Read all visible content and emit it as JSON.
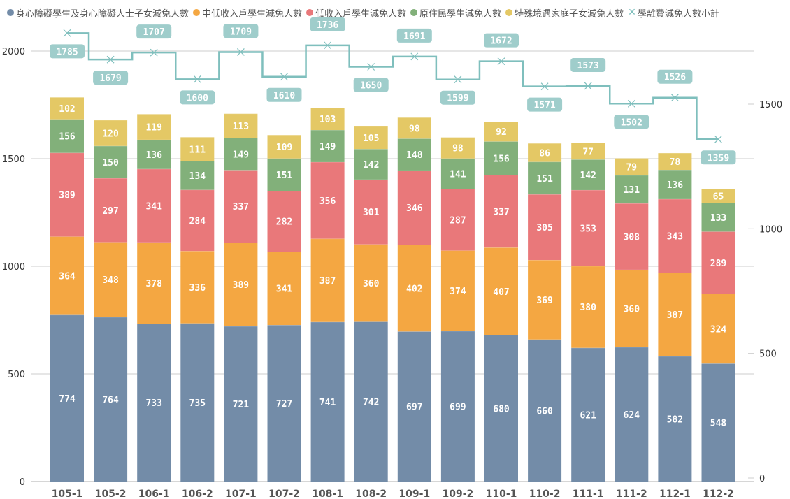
{
  "chart_data": {
    "type": "bar",
    "stacked": true,
    "title": "",
    "xlabel": "",
    "ylabel": "",
    "categories": [
      "105-1",
      "105-2",
      "106-1",
      "106-2",
      "107-1",
      "107-2",
      "108-1",
      "108-2",
      "109-1",
      "109-2",
      "110-1",
      "110-2",
      "111-1",
      "111-2",
      "112-1",
      "112-2"
    ],
    "series": [
      {
        "name": "身心障礙學生及身心障礙人士子女減免人數",
        "color": "#738ca8",
        "axis": "left",
        "values": [
          774,
          764,
          733,
          735,
          721,
          727,
          741,
          742,
          697,
          699,
          680,
          660,
          621,
          624,
          582,
          548
        ]
      },
      {
        "name": "中低收入戶學生減免人數",
        "color": "#f4a742",
        "axis": "left",
        "values": [
          364,
          348,
          378,
          336,
          389,
          341,
          387,
          360,
          402,
          374,
          407,
          369,
          380,
          360,
          387,
          324
        ]
      },
      {
        "name": "低收入戶學生減免人數",
        "color": "#e9787a",
        "axis": "left",
        "values": [
          389,
          297,
          341,
          284,
          337,
          282,
          356,
          301,
          346,
          287,
          337,
          305,
          353,
          308,
          343,
          289
        ]
      },
      {
        "name": "原住民學生減免人數",
        "color": "#82b07a",
        "axis": "left",
        "values": [
          156,
          150,
          136,
          134,
          149,
          151,
          149,
          142,
          148,
          141,
          156,
          151,
          142,
          131,
          136,
          133
        ]
      },
      {
        "name": "特殊境遇家庭子女減免人數",
        "color": "#e4c865",
        "axis": "left",
        "values": [
          102,
          120,
          119,
          111,
          113,
          109,
          103,
          105,
          98,
          98,
          92,
          86,
          77,
          79,
          78,
          65
        ]
      },
      {
        "name": "學雜費減免人數小計",
        "color": "#7fbfbd",
        "axis": "right",
        "type": "step-line",
        "marker": "x",
        "values": [
          1785,
          1679,
          1707,
          1600,
          1709,
          1610,
          1736,
          1650,
          1691,
          1599,
          1672,
          1571,
          1573,
          1502,
          1526,
          1359
        ]
      }
    ],
    "left_axis": {
      "ticks": [
        0,
        500,
        1000,
        1500,
        2000
      ],
      "ylim": [
        0,
        2000
      ]
    },
    "right_axis": {
      "ticks": [
        0,
        500,
        1000,
        1500
      ],
      "ylim": [
        0,
        1500
      ]
    },
    "grid": true,
    "legend_position": "top-left"
  }
}
